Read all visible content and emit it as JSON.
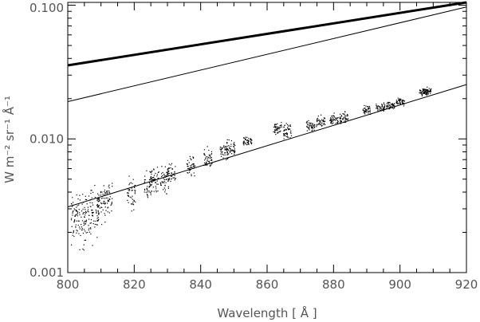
{
  "chart_data": {
    "type": "scatter",
    "xlabel": "Wavelength [ Å ]",
    "ylabel": "W m⁻² sr⁻¹ Å⁻¹",
    "xlim": [
      800,
      920
    ],
    "ylim": [
      0.001,
      0.105
    ],
    "yscale": "log",
    "grid": false,
    "x_ticks": [
      {
        "value": 800,
        "label": "800"
      },
      {
        "value": 820,
        "label": "820"
      },
      {
        "value": 840,
        "label": "840"
      },
      {
        "value": 860,
        "label": "860"
      },
      {
        "value": 880,
        "label": "880"
      },
      {
        "value": 900,
        "label": "900"
      },
      {
        "value": 920,
        "label": "920"
      }
    ],
    "y_ticks": [
      {
        "value": 0.001,
        "label": "0.001"
      },
      {
        "value": 0.01,
        "label": "0.010"
      },
      {
        "value": 0.1,
        "label": "0.100"
      }
    ],
    "lines": [
      {
        "x": [
          800,
          920
        ],
        "y": [
          0.0355,
          0.105
        ],
        "weight": "thick",
        "color": "#000000"
      },
      {
        "x": [
          800,
          920
        ],
        "y": [
          0.019,
          0.097
        ],
        "weight": "thin",
        "color": "#000000"
      },
      {
        "x": [
          800,
          920
        ],
        "y": [
          0.0031,
          0.0255
        ],
        "weight": "thin",
        "color": "#000000"
      }
    ],
    "point_clusters": [
      {
        "x": 802,
        "y": 0.0025,
        "spread": 0.25
      },
      {
        "x": 804,
        "y": 0.0024,
        "spread": 0.3
      },
      {
        "x": 806,
        "y": 0.0029,
        "spread": 0.25
      },
      {
        "x": 808,
        "y": 0.0027,
        "spread": 0.28
      },
      {
        "x": 810,
        "y": 0.0034,
        "spread": 0.2
      },
      {
        "x": 812,
        "y": 0.0036,
        "spread": 0.18
      },
      {
        "x": 819,
        "y": 0.004,
        "spread": 0.16
      },
      {
        "x": 824,
        "y": 0.0046,
        "spread": 0.16
      },
      {
        "x": 826,
        "y": 0.005,
        "spread": 0.12
      },
      {
        "x": 829,
        "y": 0.005,
        "spread": 0.15
      },
      {
        "x": 831,
        "y": 0.0055,
        "spread": 0.1
      },
      {
        "x": 837,
        "y": 0.0063,
        "spread": 0.1
      },
      {
        "x": 842,
        "y": 0.0071,
        "spread": 0.11
      },
      {
        "x": 847,
        "y": 0.008,
        "spread": 0.09
      },
      {
        "x": 849,
        "y": 0.0085,
        "spread": 0.09
      },
      {
        "x": 854,
        "y": 0.0096,
        "spread": 0.05
      },
      {
        "x": 863,
        "y": 0.012,
        "spread": 0.07
      },
      {
        "x": 866,
        "y": 0.0115,
        "spread": 0.09
      },
      {
        "x": 873,
        "y": 0.0125,
        "spread": 0.06
      },
      {
        "x": 876,
        "y": 0.0135,
        "spread": 0.06
      },
      {
        "x": 880,
        "y": 0.014,
        "spread": 0.06
      },
      {
        "x": 883,
        "y": 0.0145,
        "spread": 0.06
      },
      {
        "x": 890,
        "y": 0.0165,
        "spread": 0.05
      },
      {
        "x": 894,
        "y": 0.0175,
        "spread": 0.05
      },
      {
        "x": 897,
        "y": 0.018,
        "spread": 0.05
      },
      {
        "x": 900,
        "y": 0.019,
        "spread": 0.04
      },
      {
        "x": 907,
        "y": 0.0225,
        "spread": 0.04
      },
      {
        "x": 908,
        "y": 0.023,
        "spread": 0.04
      }
    ]
  }
}
